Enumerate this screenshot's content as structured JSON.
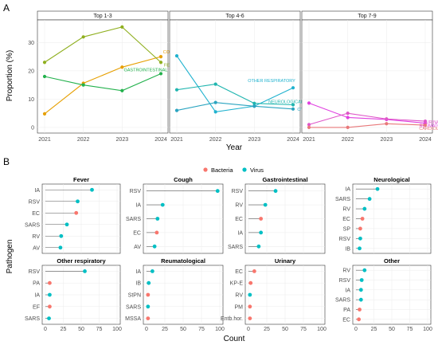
{
  "panel_labels": {
    "a": "A",
    "b": "B"
  },
  "colors": {
    "cough": "#E69F00",
    "fever": "#8FAF1F",
    "gastrointestinal": "#22B14C",
    "other_respiratory": "#20B2CF",
    "neurological": "#1FB5AF",
    "other": "#2AA4C0",
    "reumatological": "#E040E0",
    "urinary": "#DF56C8",
    "cardiological": "#E8787A",
    "bacteria": "#F8766D",
    "virus": "#00BFC4"
  },
  "chart_data": [
    {
      "type": "line",
      "panel": "A",
      "ylabel": "Proportion (%)",
      "xlabel": "Year",
      "x": [
        2021,
        2022,
        2023,
        2024
      ],
      "ylim": [
        -2,
        38
      ],
      "yticks": [
        0,
        10,
        20,
        30
      ],
      "grid": true,
      "facets": [
        {
          "title": "Top 1-3",
          "series": [
            {
              "name": "COUGH",
              "color_key": "cough",
              "values": [
                4.8,
                15.6,
                21.3,
                25.0
              ]
            },
            {
              "name": "FEVER",
              "color_key": "fever",
              "values": [
                23.0,
                32.0,
                35.5,
                23.0
              ]
            },
            {
              "name": "GASTROINTESTINAL",
              "color_key": "gastrointestinal",
              "values": [
                18.0,
                15.0,
                13.0,
                19.0
              ]
            }
          ]
        },
        {
          "title": "Top 4-6",
          "series": [
            {
              "name": "OTHER RESPIRATORY",
              "color_key": "other_respiratory",
              "values": [
                25.3,
                5.5,
                7.5,
                14.0
              ]
            },
            {
              "name": "NEUROLOGICAL",
              "color_key": "neurological",
              "values": [
                13.3,
                15.3,
                8.5,
                8.0
              ]
            },
            {
              "name": "OTHER",
              "color_key": "other",
              "values": [
                6.0,
                8.8,
                7.5,
                6.5
              ]
            }
          ]
        },
        {
          "title": "Top 7-9",
          "series": [
            {
              "name": "REUMATOLOGICAL",
              "color_key": "reumatological",
              "values": [
                8.6,
                3.5,
                2.8,
                1.5
              ]
            },
            {
              "name": "URINARY",
              "color_key": "urinary",
              "values": [
                1.0,
                5.0,
                3.0,
                2.2
              ]
            },
            {
              "name": "CARDIOLOGICAL",
              "color_key": "cardiological",
              "values": [
                0.0,
                0.0,
                1.3,
                0.8
              ]
            }
          ]
        }
      ]
    },
    {
      "type": "lollipop",
      "panel": "B",
      "ylabel": "Pathogen",
      "xlabel": "Count",
      "xlim": [
        0,
        100
      ],
      "xticks": [
        0,
        25,
        50,
        75,
        100
      ],
      "legend": {
        "position": "top",
        "entries": [
          {
            "name": "Bacteria",
            "color_key": "bacteria"
          },
          {
            "name": "Virus",
            "color_key": "virus"
          }
        ]
      },
      "facets": [
        {
          "title": "Fever",
          "items": [
            {
              "label": "IA",
              "value": 65,
              "type": "virus"
            },
            {
              "label": "RSV",
              "value": 45,
              "type": "virus"
            },
            {
              "label": "EC",
              "value": 43,
              "type": "bacteria"
            },
            {
              "label": "SARS",
              "value": 30,
              "type": "virus"
            },
            {
              "label": "RV",
              "value": 22,
              "type": "virus"
            },
            {
              "label": "AV",
              "value": 21,
              "type": "virus"
            }
          ]
        },
        {
          "title": "Cough",
          "items": [
            {
              "label": "RSV",
              "value": 97,
              "type": "virus"
            },
            {
              "label": "IA",
              "value": 22,
              "type": "virus"
            },
            {
              "label": "SARS",
              "value": 15,
              "type": "virus"
            },
            {
              "label": "EC",
              "value": 14,
              "type": "bacteria"
            },
            {
              "label": "AV",
              "value": 11,
              "type": "virus"
            }
          ]
        },
        {
          "title": "Gastrointestinal",
          "items": [
            {
              "label": "RSV",
              "value": 37,
              "type": "virus"
            },
            {
              "label": "RV",
              "value": 23,
              "type": "virus"
            },
            {
              "label": "EC",
              "value": 17,
              "type": "bacteria"
            },
            {
              "label": "IA",
              "value": 17,
              "type": "virus"
            },
            {
              "label": "SARS",
              "value": 14,
              "type": "virus"
            }
          ]
        },
        {
          "title": "Neurological",
          "items": [
            {
              "label": "IA",
              "value": 30,
              "type": "virus"
            },
            {
              "label": "SARS",
              "value": 19,
              "type": "virus"
            },
            {
              "label": "RV",
              "value": 12,
              "type": "virus"
            },
            {
              "label": "EC",
              "value": 9,
              "type": "bacteria"
            },
            {
              "label": "SP",
              "value": 6,
              "type": "bacteria"
            },
            {
              "label": "RSV",
              "value": 6,
              "type": "virus"
            },
            {
              "label": "IB",
              "value": 5,
              "type": "virus"
            }
          ]
        },
        {
          "title": "Other respiratory",
          "items": [
            {
              "label": "RSV",
              "value": 55,
              "type": "virus"
            },
            {
              "label": "PA",
              "value": 6,
              "type": "bacteria"
            },
            {
              "label": "IA",
              "value": 6,
              "type": "virus"
            },
            {
              "label": "EF",
              "value": 6,
              "type": "bacteria"
            },
            {
              "label": "SARS",
              "value": 5,
              "type": "virus"
            }
          ]
        },
        {
          "title": "Reumatological",
          "items": [
            {
              "label": "IA",
              "value": 8,
              "type": "virus"
            },
            {
              "label": "IB",
              "value": 3,
              "type": "virus"
            },
            {
              "label": "StPN",
              "value": 2,
              "type": "bacteria"
            },
            {
              "label": "SARS",
              "value": 2,
              "type": "virus"
            },
            {
              "label": "MSSA",
              "value": 2,
              "type": "bacteria"
            }
          ]
        },
        {
          "title": "Urinary",
          "items": [
            {
              "label": "EC",
              "value": 8,
              "type": "bacteria"
            },
            {
              "label": "KP-E",
              "value": 3,
              "type": "bacteria"
            },
            {
              "label": "RV",
              "value": 2,
              "type": "virus"
            },
            {
              "label": "PM",
              "value": 2,
              "type": "bacteria"
            },
            {
              "label": "Entb.hor.",
              "value": 2,
              "type": "bacteria"
            }
          ]
        },
        {
          "title": "Other",
          "items": [
            {
              "label": "RV",
              "value": 12,
              "type": "virus"
            },
            {
              "label": "RSV",
              "value": 8,
              "type": "virus"
            },
            {
              "label": "IA",
              "value": 7,
              "type": "virus"
            },
            {
              "label": "SARS",
              "value": 7,
              "type": "virus"
            },
            {
              "label": "PA",
              "value": 5,
              "type": "bacteria"
            },
            {
              "label": "EC",
              "value": 4,
              "type": "bacteria"
            }
          ]
        }
      ]
    }
  ]
}
